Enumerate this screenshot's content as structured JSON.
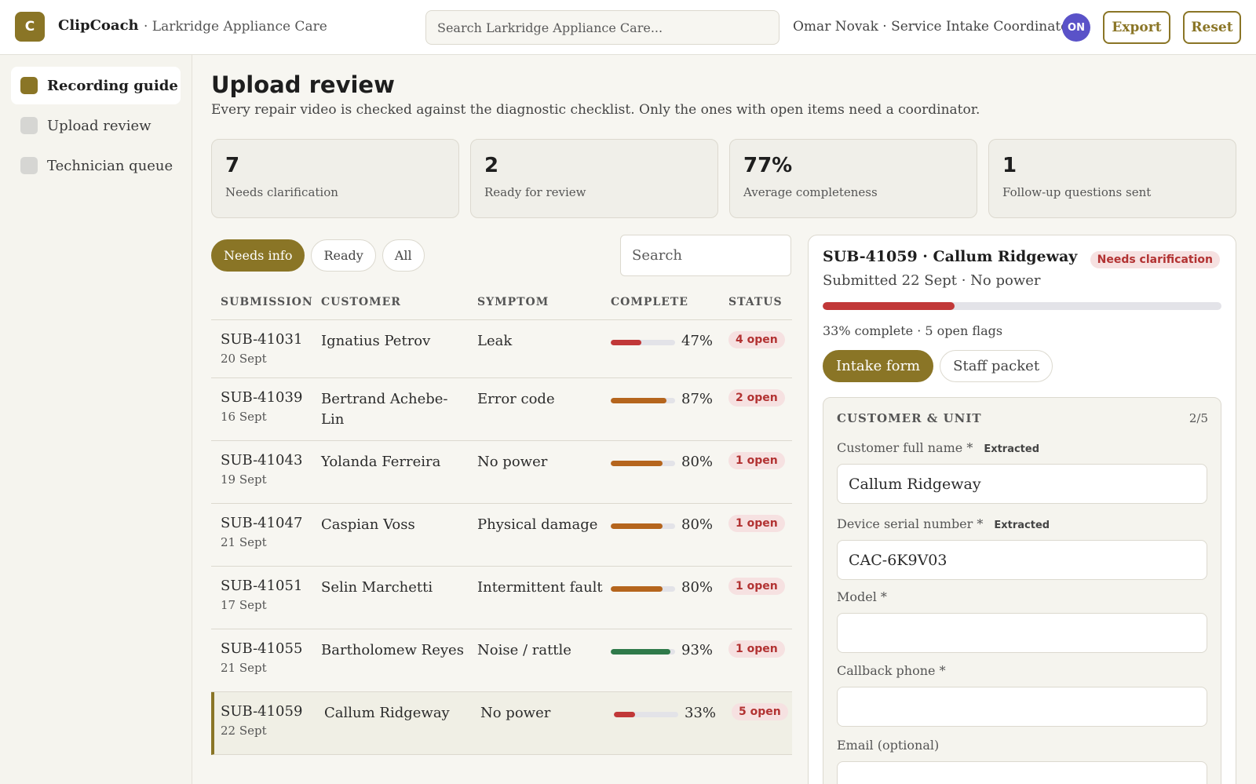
{
  "app": {
    "logo_letter": "C",
    "name": "ClipCoach",
    "org": "· Larkridge Appliance Care"
  },
  "header": {
    "search_placeholder": "Search Larkridge Appliance Care...",
    "user": "Omar Novak · Service Intake Coordinator",
    "avatar_initials": "ON",
    "export_label": "Export",
    "reset_label": "Reset"
  },
  "sidebar": {
    "items": [
      {
        "label": "Recording guide",
        "active": true
      },
      {
        "label": "Upload review",
        "active": false
      },
      {
        "label": "Technician queue",
        "active": false
      }
    ]
  },
  "page": {
    "title": "Upload review",
    "subtitle": "Every repair video is checked against the diagnostic checklist. Only the ones with open items need a coordinator."
  },
  "stats": [
    {
      "value": "7",
      "label": "Needs clarification"
    },
    {
      "value": "2",
      "label": "Ready for review"
    },
    {
      "value": "77%",
      "label": "Average completeness"
    },
    {
      "value": "1",
      "label": "Follow-up questions sent"
    }
  ],
  "filters": {
    "items": [
      "Needs info",
      "Ready",
      "All"
    ],
    "active": "Needs info",
    "search_placeholder": "Search"
  },
  "table": {
    "columns": [
      "Submission",
      "Customer",
      "Symptom",
      "Complete",
      "Status"
    ],
    "rows": [
      {
        "id": "SUB-41031",
        "date": "20 Sept",
        "customer": "Ignatius Petrov",
        "symptom": "Leak",
        "complete": 0.47,
        "pct": "47%",
        "status": "4 open",
        "bar_color": "#c13838",
        "height": 74,
        "selected": false
      },
      {
        "id": "SUB-41039",
        "date": "16 Sept",
        "customer": "Bertrand Achebe-Lin",
        "symptom": "Error code",
        "complete": 0.87,
        "pct": "87%",
        "status": "2 open",
        "bar_color": "#b5651d",
        "height": 80,
        "selected": false
      },
      {
        "id": "SUB-41043",
        "date": "19 Sept",
        "customer": "Yolanda Ferreira",
        "symptom": "No power",
        "complete": 0.8,
        "pct": "80%",
        "status": "1 open",
        "bar_color": "#b5651d",
        "height": 80,
        "selected": false
      },
      {
        "id": "SUB-41047",
        "date": "21 Sept",
        "customer": "Caspian Voss",
        "symptom": "Physical damage",
        "complete": 0.8,
        "pct": "80%",
        "status": "1 open",
        "bar_color": "#b5651d",
        "height": 80,
        "selected": false
      },
      {
        "id": "SUB-41051",
        "date": "17 Sept",
        "customer": "Selin Marchetti",
        "symptom": "Intermittent fault",
        "complete": 0.8,
        "pct": "80%",
        "status": "1 open",
        "bar_color": "#b5651d",
        "height": 80,
        "selected": false
      },
      {
        "id": "SUB-41055",
        "date": "21 Sept",
        "customer": "Bartholomew Reyes",
        "symptom": "Noise / rattle",
        "complete": 0.93,
        "pct": "93%",
        "status": "1 open",
        "bar_color": "#2f7a4a",
        "height": 80,
        "selected": false
      },
      {
        "id": "SUB-41059",
        "date": "22 Sept",
        "customer": "Callum Ridgeway",
        "symptom": "No power",
        "complete": 0.33,
        "pct": "33%",
        "status": "5 open",
        "bar_color": "#c13838",
        "height": 80,
        "selected": true
      }
    ]
  },
  "detail": {
    "title": "SUB-41059 · Callum Ridgeway",
    "badge": "Needs clarification",
    "subtitle": "Submitted 22 Sept · No power",
    "complete": 0.33,
    "meta": "33% complete · 5 open flags",
    "tabs": [
      {
        "label": "Intake form",
        "active": true
      },
      {
        "label": "Staff packet",
        "active": false
      }
    ],
    "section": {
      "title": "Customer & Unit",
      "count": "2/5",
      "fields": [
        {
          "label": "Customer full name *",
          "tag": "Extracted",
          "value": "Callum Ridgeway"
        },
        {
          "label": "Device serial number *",
          "tag": "Extracted",
          "value": "CAC-6K9V03"
        },
        {
          "label": "Model *",
          "tag": "",
          "value": ""
        },
        {
          "label": "Callback phone *",
          "tag": "",
          "value": ""
        },
        {
          "label": "Email (optional)",
          "tag": "",
          "value": ""
        }
      ]
    }
  }
}
